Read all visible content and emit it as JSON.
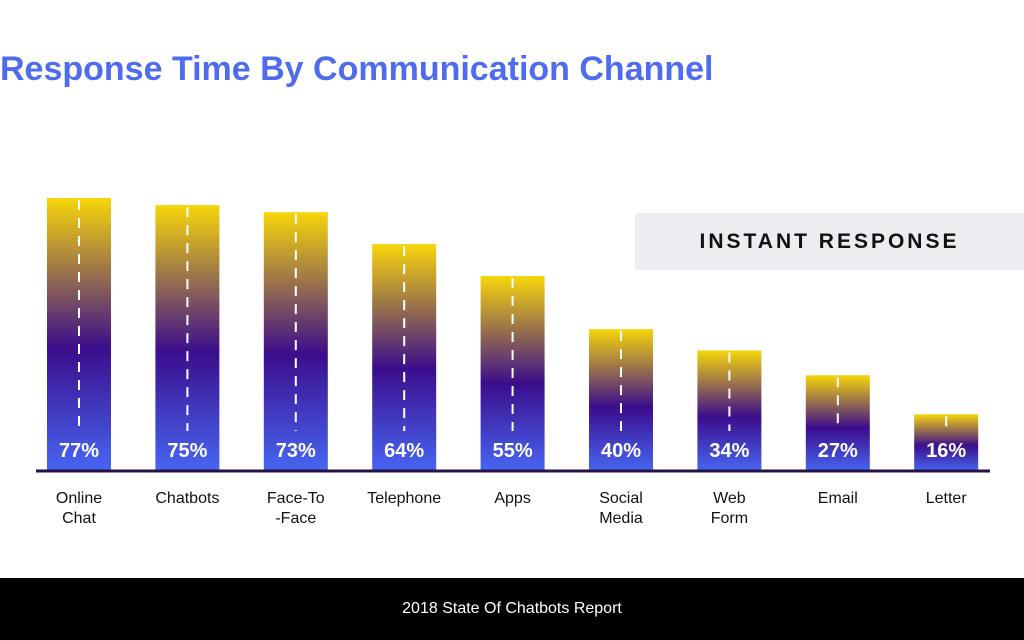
{
  "chart_data": {
    "type": "bar",
    "title": "Response Time By Communication Channel",
    "categories": [
      "Online\nChat",
      "Chatbots",
      "Face-To\n-Face",
      "Telephone",
      "Apps",
      "Social\nMedia",
      "Web\nForm",
      "Email",
      "Letter"
    ],
    "series": [
      {
        "name": "INSTANT RESPONSE",
        "values": [
          77,
          75,
          73,
          64,
          55,
          40,
          34,
          27,
          16
        ]
      }
    ],
    "data_labels": [
      "77%",
      "75%",
      "73%",
      "64%",
      "55%",
      "40%",
      "34%",
      "27%",
      "16%"
    ],
    "value_suffix": "%",
    "ylim": [
      0,
      77
    ],
    "grid": false,
    "legend_position": "right",
    "colors": {
      "bar_top": "#f7d60a",
      "bar_middle": "#3b0d8c",
      "bar_bottom": "#4766f2",
      "axis": "#2a0f4a",
      "title": "#4f6cf0",
      "label_text": "#ffffff"
    }
  },
  "legend": {
    "label": "INSTANT RESPONSE"
  },
  "footer": {
    "source": "2018 State Of Chatbots Report"
  }
}
